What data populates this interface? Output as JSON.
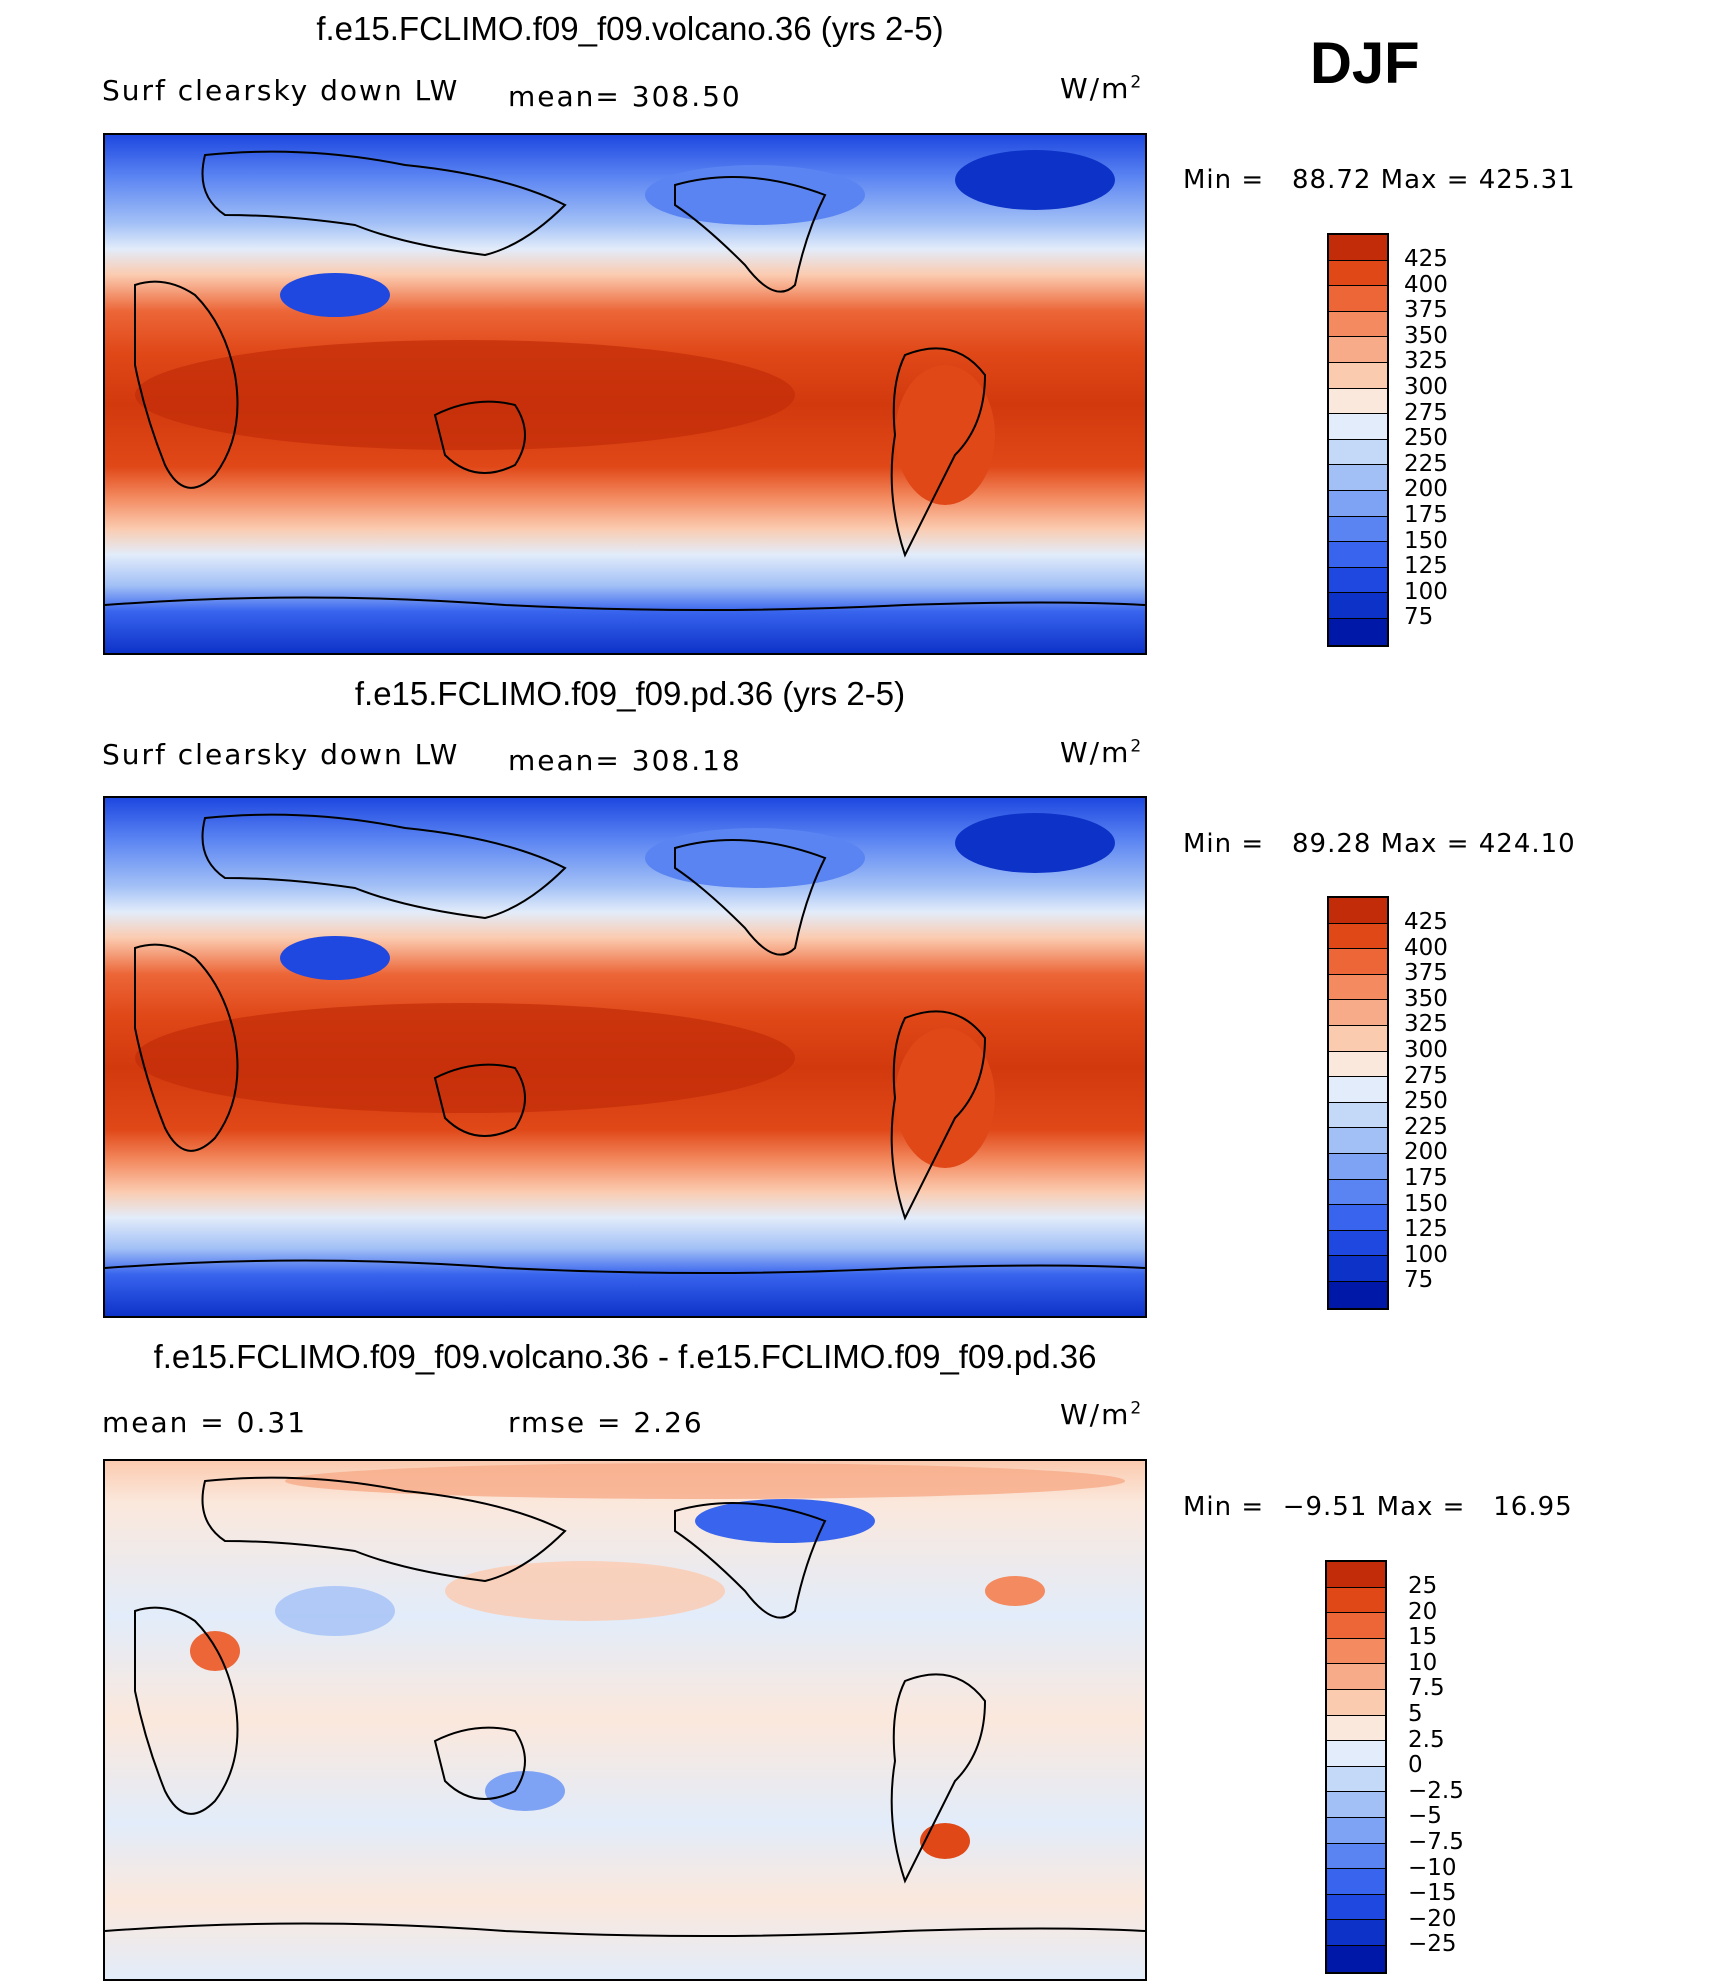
{
  "season": "DJF",
  "colors": {
    "abs_scale": [
      "#00007f",
      "#0018a8",
      "#0d32c8",
      "#1e48e0",
      "#3864ee",
      "#5a84f2",
      "#7ea2f4",
      "#a2c0f6",
      "#c4d8f8",
      "#e2ecfa",
      "#fbe8dc",
      "#fbcbb0",
      "#f8ab88",
      "#f38a60",
      "#ec6638",
      "#e04818",
      "#c22c08",
      "#8a0000"
    ],
    "diff_scale": [
      "#00007f",
      "#0018a8",
      "#0d32c8",
      "#1e48e0",
      "#3864ee",
      "#5a84f2",
      "#7ea2f4",
      "#a2c0f6",
      "#c4d8f8",
      "#e2ecfa",
      "#fbe8dc",
      "#fbcbb0",
      "#f8ab88",
      "#f38a60",
      "#ec6638",
      "#e04818",
      "#c22c08",
      "#8a0000"
    ]
  },
  "panels": [
    {
      "title": "f.e15.FCLIMO.f09_f09.volcano.36 (yrs 2-5)",
      "left_label": "Surf clearsky down LW",
      "mid_label": "mean= 308.50",
      "units_label": "W/m",
      "units_sup": "2",
      "min_max": "Min =   88.72 Max = 425.31",
      "colorbar_labels": [
        "425",
        "400",
        "375",
        "350",
        "325",
        "300",
        "275",
        "250",
        "225",
        "200",
        "175",
        "150",
        "125",
        "100",
        "75"
      ],
      "kind": "abs"
    },
    {
      "title": "f.e15.FCLIMO.f09_f09.pd.36 (yrs 2-5)",
      "left_label": "Surf clearsky down LW",
      "mid_label": "mean= 308.18",
      "units_label": "W/m",
      "units_sup": "2",
      "min_max": "Min =   89.28 Max = 424.10",
      "colorbar_labels": [
        "425",
        "400",
        "375",
        "350",
        "325",
        "300",
        "275",
        "250",
        "225",
        "200",
        "175",
        "150",
        "125",
        "100",
        "75"
      ],
      "kind": "abs"
    },
    {
      "title": "f.e15.FCLIMO.f09_f09.volcano.36 - f.e15.FCLIMO.f09_f09.pd.36",
      "left_label": "mean =    0.31",
      "mid_label": "rmse =    2.26",
      "units_label": "W/m",
      "units_sup": "2",
      "min_max": "Min =  −9.51 Max =   16.95",
      "colorbar_labels": [
        "25",
        "20",
        "15",
        "10",
        "7.5",
        "5",
        "2.5",
        "0",
        "−2.5",
        "−5",
        "−7.5",
        "−10",
        "−15",
        "−20",
        "−25"
      ],
      "kind": "diff"
    }
  ]
}
